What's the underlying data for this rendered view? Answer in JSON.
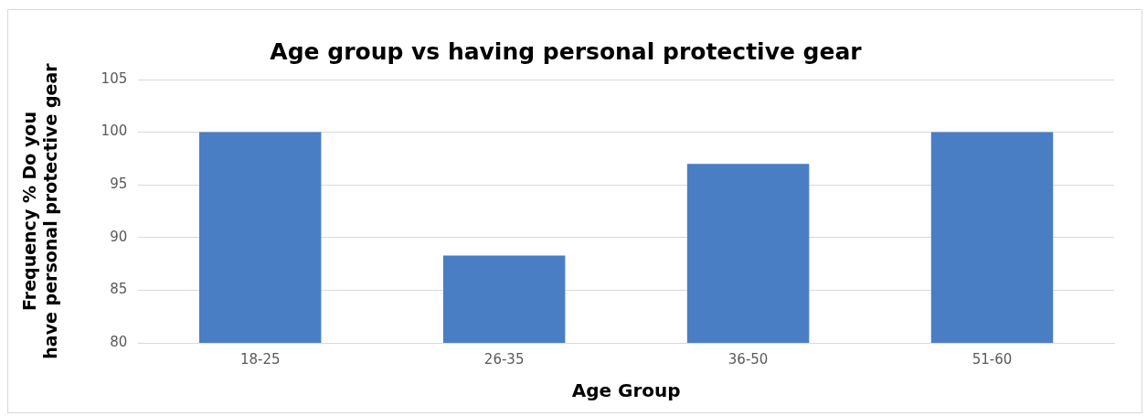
{
  "chart_data": {
    "type": "bar",
    "title": "Age group vs having personal protective gear",
    "xlabel": "Age Group",
    "ylabel": "Frequency % Do you have personal protective gear",
    "categories": [
      "18-25",
      "26-35",
      "36-50",
      "51-60"
    ],
    "values": [
      100,
      88.3,
      97,
      100
    ],
    "color": "#4a7ec4",
    "ylim": [
      80,
      105
    ],
    "yticks": [
      80,
      85,
      90,
      95,
      100,
      105
    ],
    "grid": "y"
  }
}
